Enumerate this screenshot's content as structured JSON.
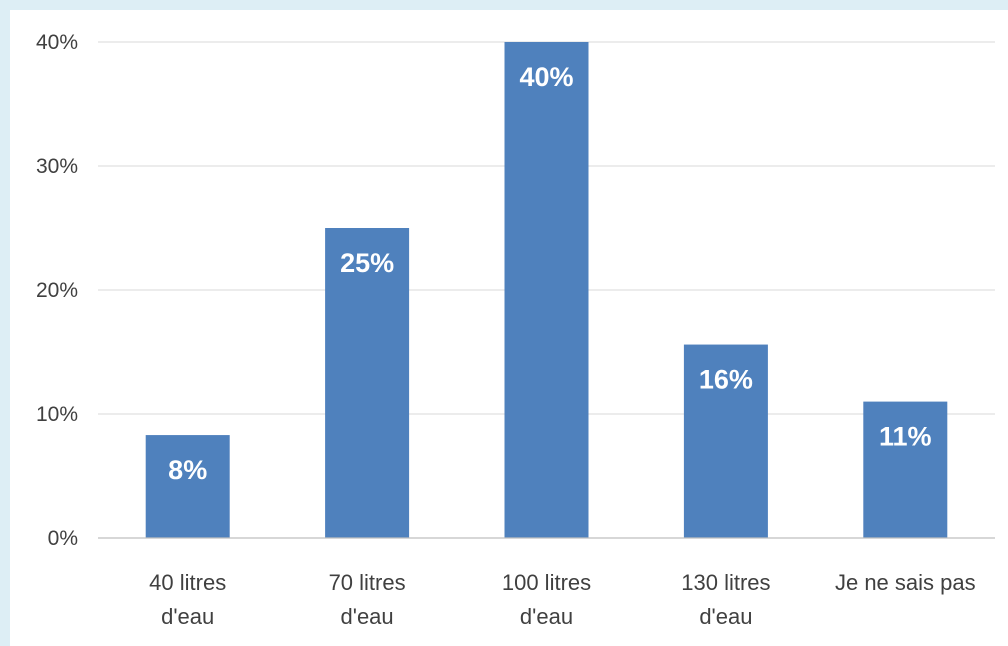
{
  "chart_data": {
    "type": "bar",
    "categories": [
      [
        "40 litres",
        "d'eau"
      ],
      [
        "70 litres",
        "d'eau"
      ],
      [
        "100 litres",
        "d'eau"
      ],
      [
        "130 litres",
        "d'eau"
      ],
      [
        "Je ne sais pas"
      ]
    ],
    "values": [
      8.3,
      25,
      40,
      15.6,
      11
    ],
    "data_labels": [
      "8%",
      "25%",
      "40%",
      "16%",
      "11%"
    ],
    "y_ticks": [
      {
        "value": 0,
        "label": "0%"
      },
      {
        "value": 10,
        "label": "10%"
      },
      {
        "value": 20,
        "label": "20%"
      },
      {
        "value": 30,
        "label": "30%"
      },
      {
        "value": 40,
        "label": "40%"
      }
    ],
    "ylim": [
      0,
      40
    ],
    "title": "",
    "xlabel": "",
    "ylabel": "",
    "grid": true,
    "legend": "none",
    "bar_color": "#4f81bd"
  }
}
